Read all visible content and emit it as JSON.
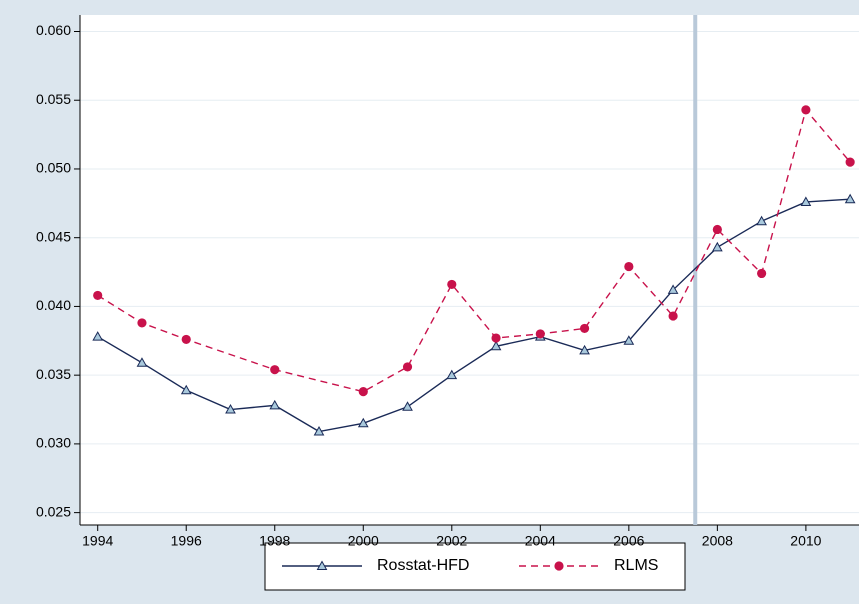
{
  "chart_data": {
    "type": "line",
    "xlim": [
      1993.6,
      2011.2
    ],
    "ylim": [
      0.0241,
      0.0612
    ],
    "xticks": [
      1994,
      1996,
      1998,
      2000,
      2002,
      2004,
      2006,
      2008,
      2010
    ],
    "yticks": [
      0.025,
      {
        "value": 0.03,
        "label": "0.030"
      },
      0.035,
      {
        "value": 0.04,
        "label": "0.040"
      },
      0.045,
      {
        "value": 0.05,
        "label": "0.050"
      },
      0.055,
      {
        "value": 0.06,
        "label": "0.060"
      }
    ],
    "grid": true,
    "legend": "bottom",
    "vline": 2007.5,
    "vline_color": "#b9c9d9",
    "series": [
      {
        "name": "Rosstat-HFD",
        "color": "#1a2a57",
        "marker": "triangle",
        "marker_fill": "#a9c9dc",
        "dashed": false,
        "x": [
          1994,
          1995,
          1996,
          1997,
          1998,
          1999,
          2000,
          2001,
          2002,
          2003,
          2004,
          2005,
          2006,
          2007,
          2008,
          2009,
          2010,
          2011
        ],
        "values": [
          0.0378,
          0.0359,
          0.0339,
          0.0325,
          0.0328,
          0.0309,
          0.0315,
          0.0327,
          0.035,
          0.0371,
          0.0378,
          0.0368,
          0.0375,
          0.0412,
          0.0443,
          0.0462,
          0.0476,
          0.0478
        ]
      },
      {
        "name": "RLMS",
        "color": "#c8124b",
        "marker": "circle",
        "marker_fill": "#c8124b",
        "dashed": true,
        "x": [
          1994,
          1995,
          1996,
          1998,
          2000,
          2001,
          2002,
          2003,
          2004,
          2005,
          2006,
          2007,
          2008,
          2009,
          2010,
          2011
        ],
        "values": [
          0.0408,
          0.0388,
          0.0376,
          0.0354,
          0.0338,
          0.0356,
          0.0416,
          0.0377,
          0.038,
          0.0384,
          0.0429,
          0.0393,
          0.0456,
          0.0424,
          0.0543,
          0.0505
        ]
      }
    ]
  }
}
